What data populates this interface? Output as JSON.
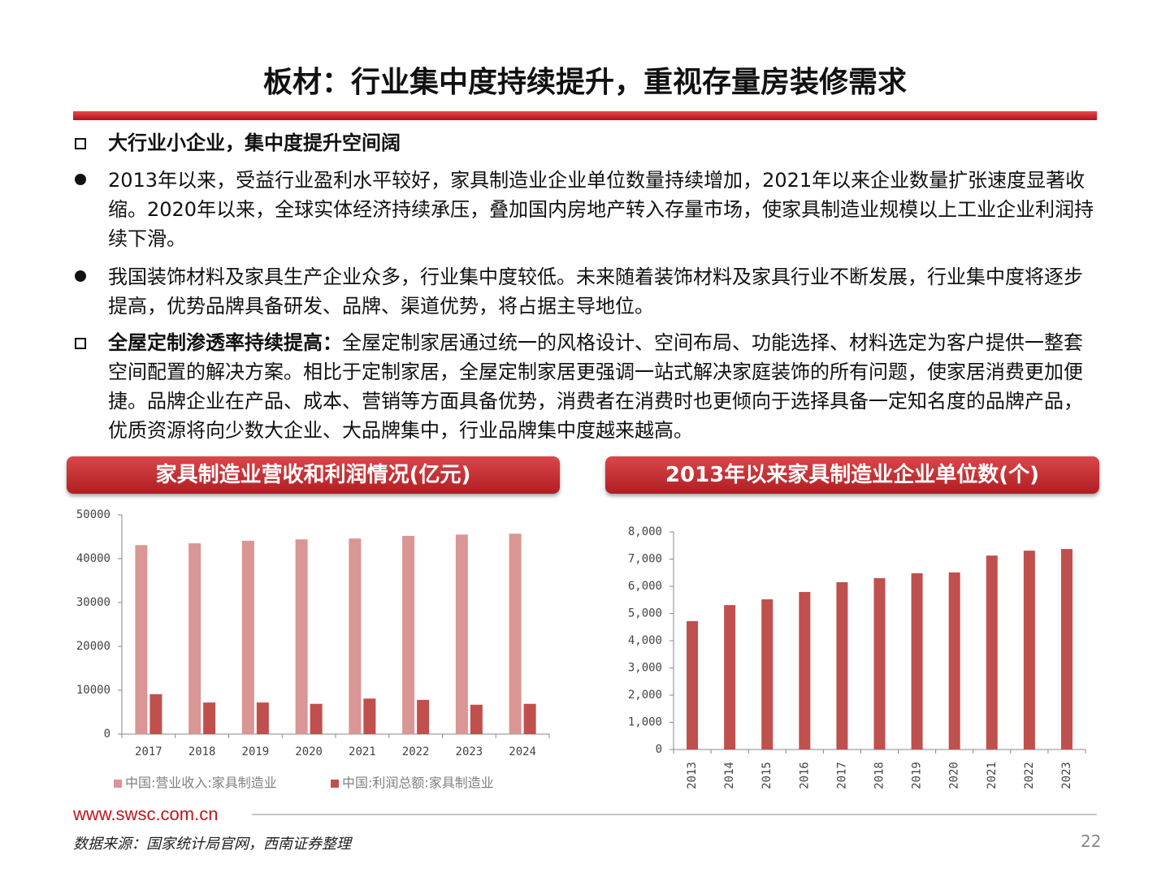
{
  "header": {
    "title": "板材：行业集中度持续提升，重视存量房装修需求"
  },
  "bullets": [
    {
      "text": "大行业小企业，集中度提升空间阔"
    },
    {
      "text": "2013年以来，受益行业盈利水平较好，家具制造业企业单位数量持续增加，2021年以来企业数量扩张速度显著收缩。2020年以来，全球实体经济持续承压，叠加国内房地产转入存量市场，使家具制造业规模以上工业企业利润持续下滑。"
    },
    {
      "text": "我国装饰材料及家具生产企业众多，行业集中度较低。未来随着装饰材料及家具行业不断发展，行业集中度将逐步提高，优势品牌具备研发、品牌、渠道优势，将占据主导地位。"
    },
    {
      "lead": "全屋定制渗透率持续提高：",
      "text": "全屋定制家居通过统一的风格设计、空间布局、功能选择、材料选定为客户提供一整套空间配置的解决方案。相比于定制家居，全屋定制家居更强调一站式解决家庭装饰的所有问题，使家居消费更加便捷。品牌企业在产品、成本、营销等方面具备优势，消费者在消费时也更倾向于选择具备一定知名度的品牌产品，优质资源将向少数大企业、大品牌集中，行业品牌集中度越来越高。"
    }
  ],
  "chart_data": [
    {
      "type": "bar",
      "title": "家具制造业营收和利润情况(亿元)",
      "categories": [
        "2017",
        "2018",
        "2019",
        "2020",
        "2021",
        "2022",
        "2023",
        "2024"
      ],
      "series": [
        {
          "name": "中国:营业收入:家具制造业",
          "color": "#d99694",
          "values": [
            43100,
            43500,
            44100,
            44400,
            44600,
            45200,
            45500,
            45700
          ]
        },
        {
          "name": "中国:利润总额:家具制造业",
          "color": "#c0504d",
          "values": [
            9100,
            7200,
            7200,
            6900,
            8100,
            7800,
            6700,
            6900
          ]
        }
      ],
      "ylim": [
        0,
        50000
      ],
      "yticks": [
        0,
        10000,
        20000,
        30000,
        40000,
        50000
      ],
      "grid": false,
      "legend": "bottom"
    },
    {
      "type": "bar",
      "title": "2013年以来家具制造业企业单位数(个)",
      "categories": [
        "2013",
        "2014",
        "2015",
        "2016",
        "2017",
        "2018",
        "2019",
        "2020",
        "2021",
        "2022",
        "2023"
      ],
      "values": [
        4720,
        5310,
        5520,
        5790,
        6150,
        6300,
        6480,
        6510,
        7130,
        7310,
        7370
      ],
      "color": "#c0504d",
      "ylim": [
        0,
        8000
      ],
      "yticks": [
        0,
        {
          "value": 1000,
          "label": "1,000"
        },
        {
          "value": 2000,
          "label": "2,000"
        },
        {
          "value": 3000,
          "label": "3,000"
        },
        {
          "value": 4000,
          "label": "4,000"
        },
        {
          "value": 5000,
          "label": "5,000"
        },
        {
          "value": 6000,
          "label": "6,000"
        },
        {
          "value": 7000,
          "label": "7,000"
        },
        {
          "value": 8000,
          "label": "8,000"
        }
      ],
      "grid": false,
      "x_label_rotation": -90
    }
  ],
  "footer": {
    "site": "www.swsc.com.cn",
    "source": "数据来源：国家统计局官网，西南证券整理",
    "page": "22"
  }
}
